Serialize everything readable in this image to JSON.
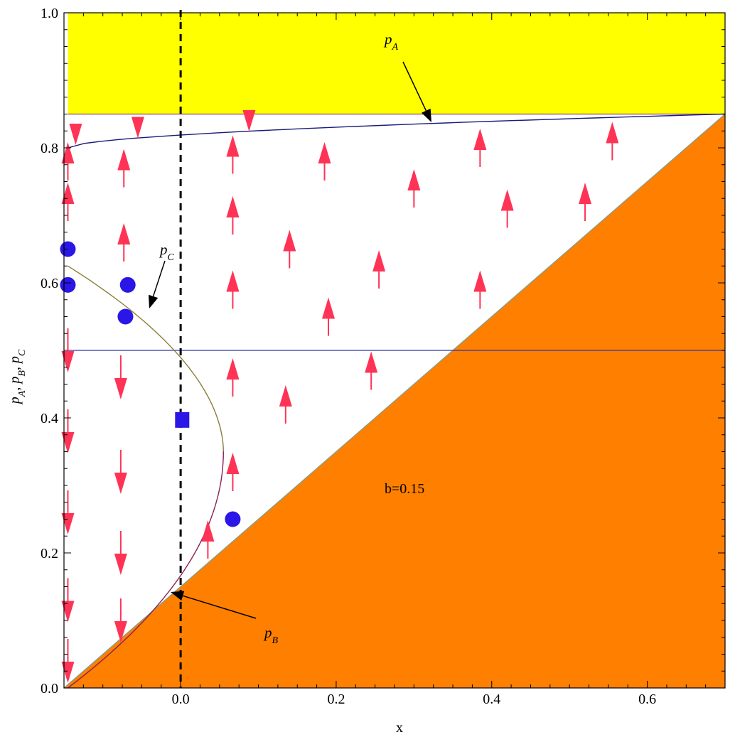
{
  "chart_data": {
    "type": "scatter",
    "xlabel": "x",
    "ylabel": "pA, pB, pC",
    "ylabel_parts": [
      "p",
      "A",
      ", ",
      "p",
      "B",
      ", ",
      "p",
      "C"
    ],
    "xlim": [
      -0.15,
      0.7
    ],
    "ylim": [
      0.0,
      1.0
    ],
    "x_ticks": [
      0.0,
      0.2,
      0.4,
      0.6
    ],
    "x_tick_labels": [
      "0.0",
      "0.2",
      "0.4",
      "0.6"
    ],
    "y_ticks": [
      0.0,
      0.2,
      0.4,
      0.6,
      0.8,
      1.0
    ],
    "y_tick_labels": [
      "0.0",
      "0.2",
      "0.4",
      "0.6",
      "0.8",
      "1.0"
    ],
    "grid": false,
    "b_label": "b=0.15",
    "annotations": {
      "pA": {
        "p": "p",
        "sub": "A"
      },
      "pB": {
        "p": "p",
        "sub": "B"
      },
      "pC": {
        "p": "p",
        "sub": "C"
      }
    },
    "regions": {
      "yellow_band": {
        "y_from": 0.85,
        "y_to": 1.0,
        "color": "#ffff00"
      },
      "orange_triangle": {
        "line_from": [
          -0.15,
          0.0
        ],
        "line_to": [
          0.7,
          0.85
        ],
        "color": "#ff7f00"
      }
    },
    "curves": {
      "pA_curve": {
        "from": [
          -0.15,
          0.8
        ],
        "to": [
          0.7,
          0.85
        ],
        "color": "#1a1a7a"
      },
      "horizontal_line": {
        "y": 0.5,
        "color": "#3333aa"
      },
      "pB_curve": {
        "from": [
          -0.15,
          0.0
        ],
        "to": [
          0.055,
          0.35
        ],
        "color": "#8b2252"
      },
      "pC_curve": {
        "from": [
          0.055,
          0.35
        ],
        "to": [
          -0.15,
          0.625
        ],
        "color": "#8b7d3a"
      },
      "dashed_vertical": {
        "x": 0.0
      }
    },
    "points_circles": [
      {
        "x": -0.145,
        "y": 0.65
      },
      {
        "x": -0.145,
        "y": 0.597
      },
      {
        "x": -0.068,
        "y": 0.597
      },
      {
        "x": -0.071,
        "y": 0.55
      },
      {
        "x": 0.067,
        "y": 0.25
      }
    ],
    "point_square": {
      "x": 0.002,
      "y": 0.397
    },
    "vector_arrows_up": [
      {
        "x": -0.145,
        "y": 0.72
      },
      {
        "x": -0.145,
        "y": 0.78
      },
      {
        "x": -0.073,
        "y": 0.66
      },
      {
        "x": -0.073,
        "y": 0.77
      },
      {
        "x": 0.067,
        "y": 0.32
      },
      {
        "x": 0.067,
        "y": 0.46
      },
      {
        "x": 0.067,
        "y": 0.59
      },
      {
        "x": 0.067,
        "y": 0.7
      },
      {
        "x": 0.067,
        "y": 0.79
      },
      {
        "x": 0.035,
        "y": 0.22
      },
      {
        "x": 0.135,
        "y": 0.42
      },
      {
        "x": 0.14,
        "y": 0.65
      },
      {
        "x": 0.19,
        "y": 0.55
      },
      {
        "x": 0.185,
        "y": 0.78
      },
      {
        "x": 0.245,
        "y": 0.47
      },
      {
        "x": 0.255,
        "y": 0.62
      },
      {
        "x": 0.3,
        "y": 0.74
      },
      {
        "x": 0.385,
        "y": 0.59
      },
      {
        "x": 0.385,
        "y": 0.8
      },
      {
        "x": 0.42,
        "y": 0.71
      },
      {
        "x": 0.52,
        "y": 0.72
      },
      {
        "x": 0.555,
        "y": 0.81
      }
    ],
    "vector_arrows_down": [
      {
        "x": -0.135,
        "y": 0.82
      },
      {
        "x": -0.055,
        "y": 0.83
      },
      {
        "x": 0.088,
        "y": 0.84
      },
      {
        "x": -0.145,
        "y": 0.5
      },
      {
        "x": -0.145,
        "y": 0.38
      },
      {
        "x": -0.145,
        "y": 0.26
      },
      {
        "x": -0.145,
        "y": 0.13
      },
      {
        "x": -0.145,
        "y": 0.04
      },
      {
        "x": -0.077,
        "y": 0.46
      },
      {
        "x": -0.077,
        "y": 0.32
      },
      {
        "x": -0.077,
        "y": 0.2
      },
      {
        "x": -0.077,
        "y": 0.1
      }
    ],
    "colors": {
      "arrow": "#ff3355",
      "point": "#2a16e6",
      "yellow": "#ffff00",
      "orange": "#ff7f00"
    }
  }
}
